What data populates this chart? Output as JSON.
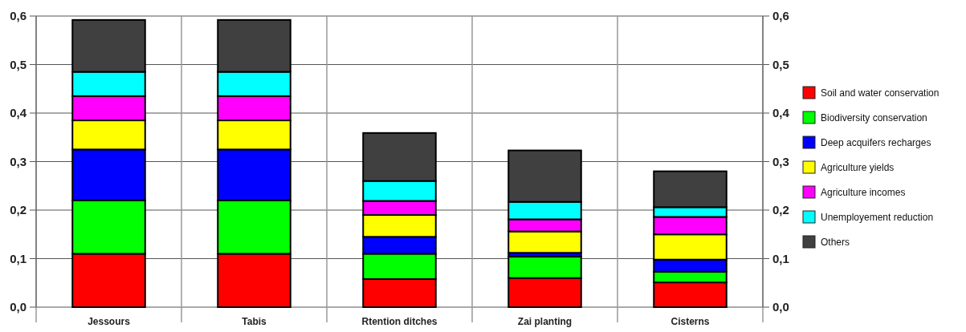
{
  "chart_data": {
    "type": "bar",
    "stacked": true,
    "categories": [
      "Jessours",
      "Tabis",
      "Rtention ditches",
      "Zai planting",
      "Cisterns"
    ],
    "series": [
      {
        "name": "Soil and water conservation",
        "color": "#ff0000",
        "values": [
          0.11,
          0.11,
          0.058,
          0.06,
          0.051
        ]
      },
      {
        "name": "Biodiversity conservation",
        "color": "#00ff00",
        "values": [
          0.11,
          0.11,
          0.052,
          0.044,
          0.022
        ]
      },
      {
        "name": "Deep acquifers recharges",
        "color": "#0000ff",
        "values": [
          0.105,
          0.105,
          0.035,
          0.008,
          0.025
        ]
      },
      {
        "name": "Agriculture yields",
        "color": "#ffff00",
        "values": [
          0.06,
          0.06,
          0.045,
          0.044,
          0.052
        ]
      },
      {
        "name": "Agriculture incomes",
        "color": "#ff00ff",
        "values": [
          0.05,
          0.05,
          0.029,
          0.025,
          0.036
        ]
      },
      {
        "name": "Unemployement reduction",
        "color": "#00ffff",
        "values": [
          0.05,
          0.05,
          0.041,
          0.036,
          0.02
        ]
      },
      {
        "name": "Others",
        "color": "#404040",
        "values": [
          0.107,
          0.107,
          0.099,
          0.106,
          0.074
        ]
      }
    ],
    "ylim": [
      0,
      0.6
    ],
    "yticks": [
      {
        "value": 0,
        "label": "0,0"
      },
      {
        "value": 0.1,
        "label": "0,1"
      },
      {
        "value": 0.2,
        "label": "0,2"
      },
      {
        "value": 0.3,
        "label": "0,3"
      },
      {
        "value": 0.4,
        "label": "0,4"
      },
      {
        "value": 0.5,
        "label": "0,5"
      },
      {
        "value": 0.6,
        "label": "0,6"
      }
    ],
    "y2lim": [
      0,
      0.6
    ],
    "y2ticks": [
      {
        "value": 0,
        "label": "0,0"
      },
      {
        "value": 0.1,
        "label": "0,1"
      },
      {
        "value": 0.2,
        "label": "0,2"
      },
      {
        "value": 0.3,
        "label": "0,3"
      },
      {
        "value": 0.4,
        "label": "0,4"
      },
      {
        "value": 0.5,
        "label": "0,5"
      },
      {
        "value": 0.6,
        "label": "0,6"
      }
    ],
    "grid": true,
    "legend": "right"
  }
}
